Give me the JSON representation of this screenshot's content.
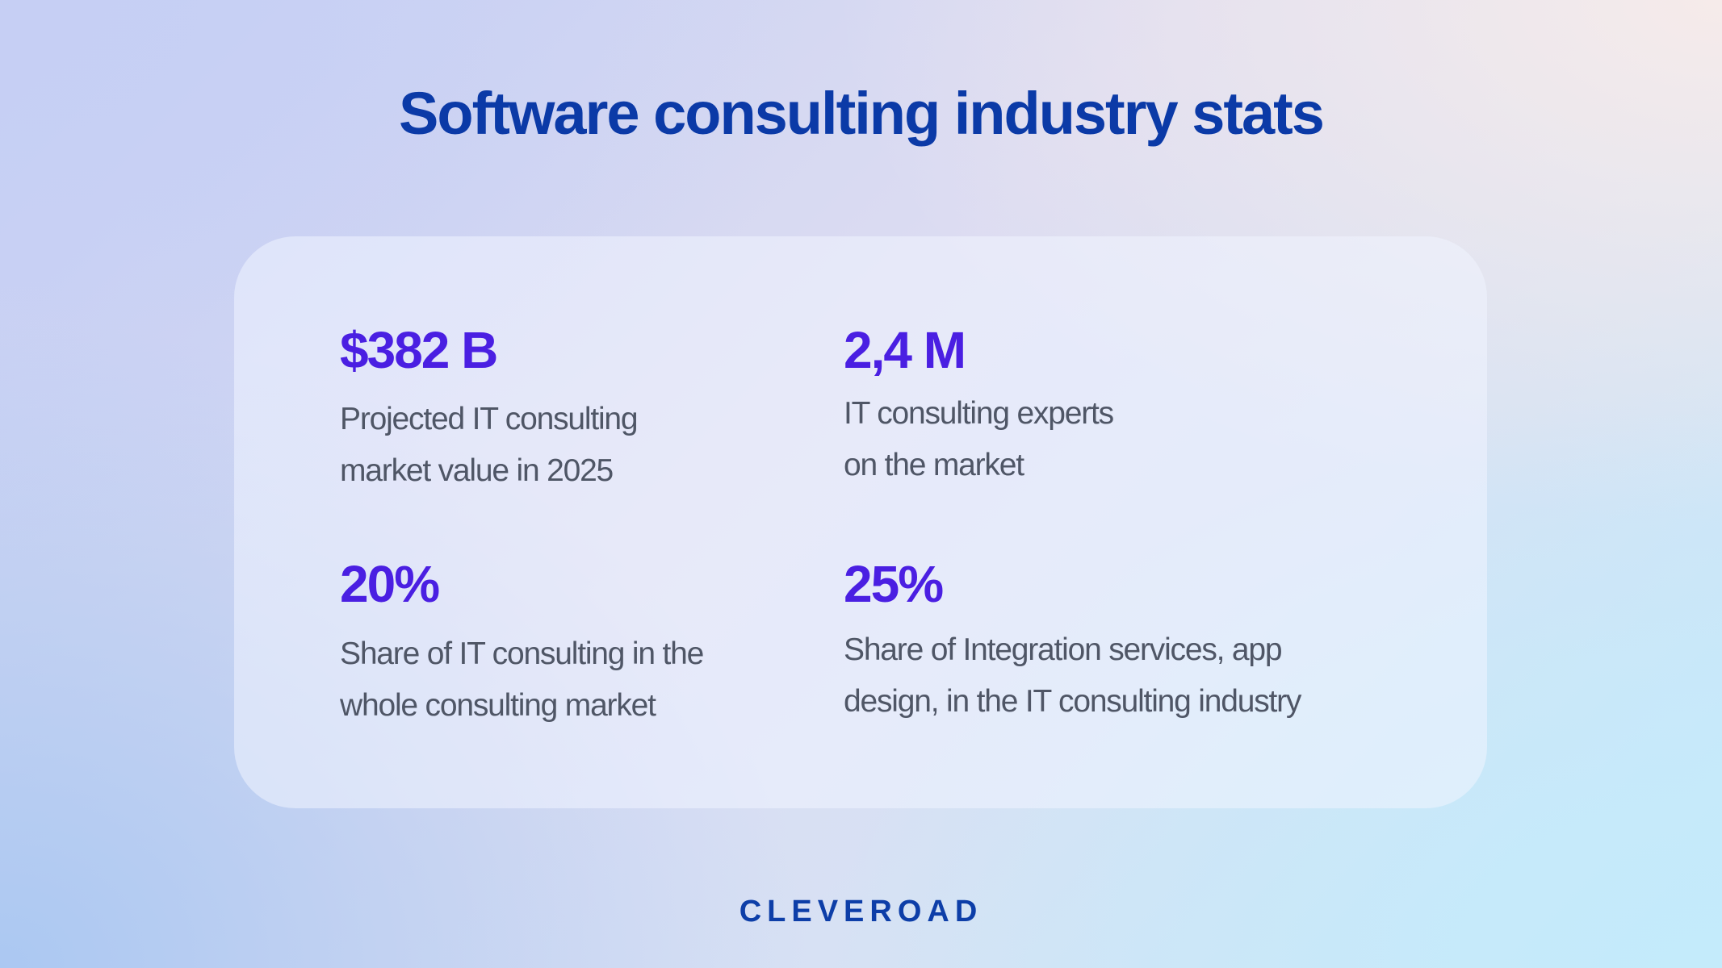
{
  "header": {
    "title": "Software consulting industry stats"
  },
  "stats": [
    {
      "value": "$382 B",
      "description_lines": [
        "Projected IT consulting",
        "market value in 2025"
      ]
    },
    {
      "value": "2,4 M",
      "description_lines": [
        "IT consulting experts",
        "on the market"
      ]
    },
    {
      "value": "20%",
      "description_lines": [
        "Share of IT consulting in the",
        "whole consulting market"
      ]
    },
    {
      "value": "25%",
      "description_lines": [
        "Share of Integration services, app",
        "design, in the IT consulting industry"
      ]
    }
  ],
  "footer": {
    "brand": "CLEVEROAD"
  },
  "colors": {
    "title": "#0b3aa7",
    "stat_value": "#4a1fe2",
    "description": "#4f5666",
    "brand": "#0d3ea8",
    "background_top_left": "#c5cff3",
    "background_top_right": "#f5ebea",
    "background_bottom_left": "#adc9f2",
    "background_bottom_right": "#c4eafb"
  }
}
